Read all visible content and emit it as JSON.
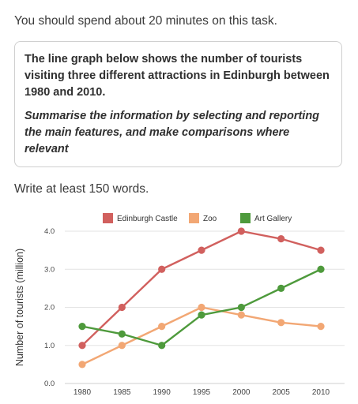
{
  "intro": "You should spend about 20 minutes on this task.",
  "task": {
    "description": "The line graph below shows the number of tourists visiting three different attractions in Edinburgh between 1980 and 2010.",
    "instruction": "Summarise the information by selecting and reporting the main features, and make comparisons where relevant"
  },
  "word_requirement": "Write at least 150 words.",
  "chart_data": {
    "type": "line",
    "x": [
      "1980",
      "1985",
      "1990",
      "1995",
      "2000",
      "2005",
      "2010"
    ],
    "ylabel": "Number of tourists (million)",
    "xlabel": "",
    "ylim": [
      0,
      4
    ],
    "yticks": [
      "0.0",
      "1.0",
      "2.0",
      "3.0",
      "4.0"
    ],
    "grid": true,
    "legend_position": "top",
    "series": [
      {
        "name": "Edinburgh Castle",
        "color": "#d1605e",
        "values": [
          1.0,
          2.0,
          3.0,
          3.5,
          4.0,
          3.8,
          3.5
        ]
      },
      {
        "name": "Zoo",
        "color": "#f2a774",
        "values": [
          0.5,
          1.0,
          1.5,
          2.0,
          1.8,
          1.6,
          1.5
        ]
      },
      {
        "name": "Art Gallery",
        "color": "#4e9a3c",
        "values": [
          1.5,
          1.3,
          1.0,
          1.8,
          2.0,
          2.5,
          3.0
        ]
      }
    ]
  }
}
